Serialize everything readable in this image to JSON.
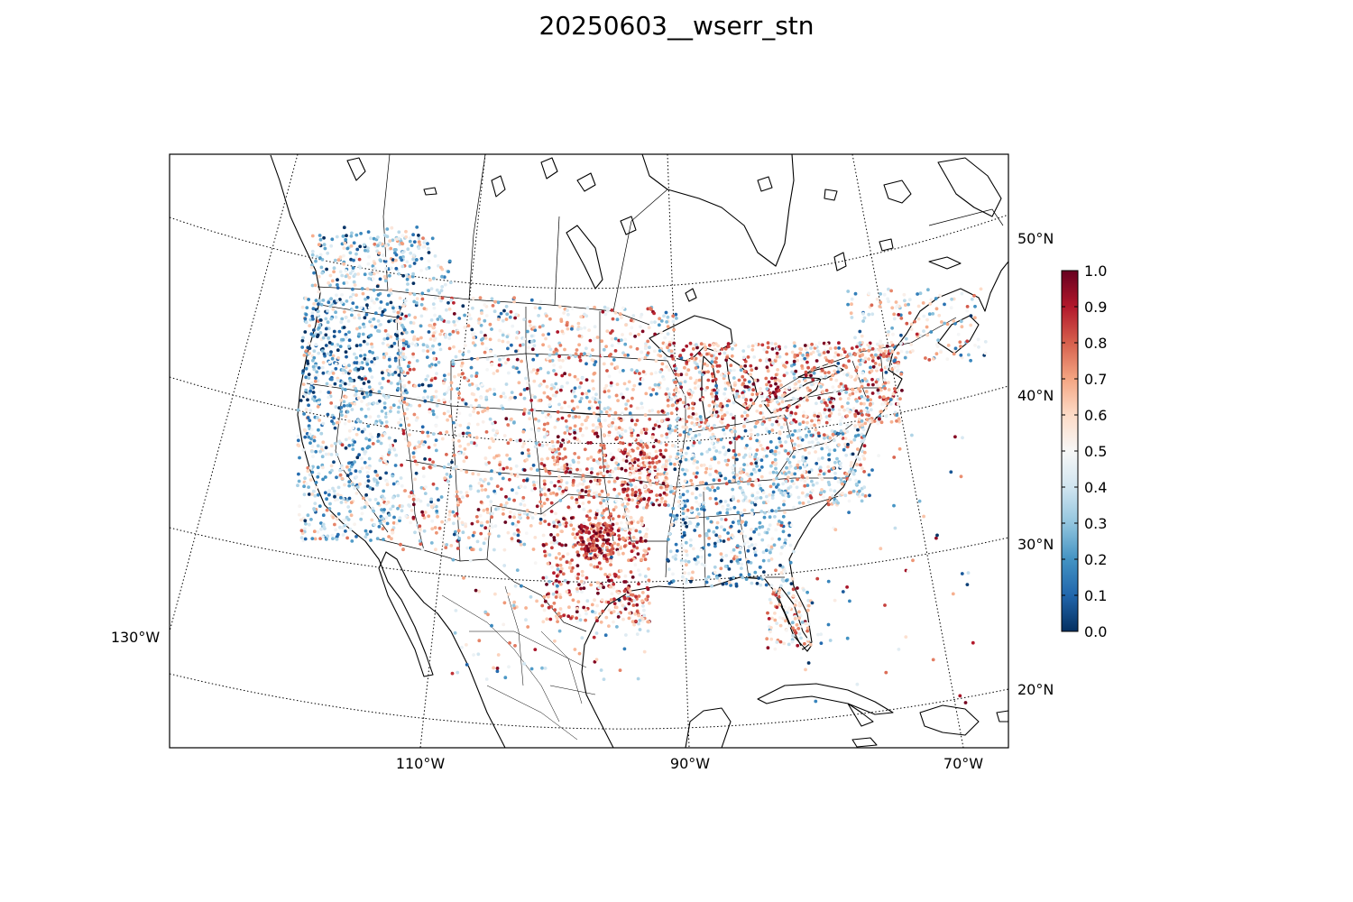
{
  "title": "20250603__wserr_stn",
  "map": {
    "projection": "lambert-conformal",
    "region": "North America (CONUS)",
    "lon_labels": [
      "130°W",
      "110°W",
      "90°W",
      "70°W"
    ],
    "lat_labels": [
      "50°N",
      "40°N",
      "30°N",
      "20°N"
    ],
    "graticule_style": "dotted",
    "colors": {
      "coast": "#000000",
      "graticule": "#000000",
      "background": "#ffffff"
    }
  },
  "colorbar": {
    "cmap": "RdBu_r",
    "ticks": [
      "1.0",
      "0.9",
      "0.8",
      "0.7",
      "0.6",
      "0.5",
      "0.4",
      "0.3",
      "0.2",
      "0.1",
      "0.0"
    ],
    "range": [
      0.0,
      1.0
    ],
    "stops": [
      "#053061",
      "#2166ac",
      "#4393c3",
      "#92c5de",
      "#d1e5f0",
      "#f7f7f7",
      "#fddbc7",
      "#f4a582",
      "#d6604d",
      "#b2182b",
      "#67001f"
    ]
  },
  "stations": {
    "marker": "dot",
    "note_visible_pattern": "high values concentrated in southern plains (Texas/Oklahoma), Midwest and mid-Atlantic; low values along Pacific coast and northern Rockies"
  }
}
